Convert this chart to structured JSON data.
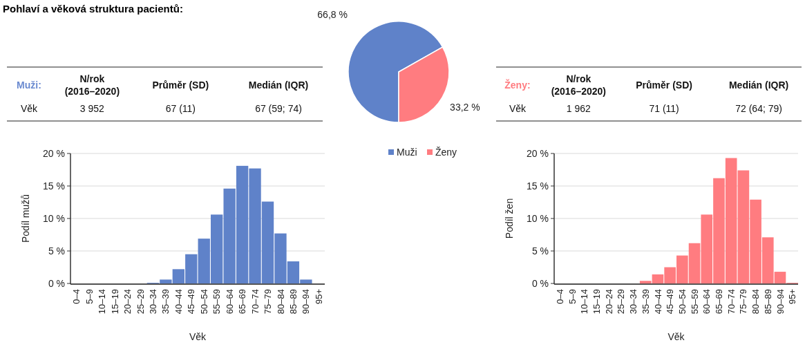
{
  "chart_data": [
    {
      "type": "other",
      "title": "Pohlaví a věková struktura pacientů:"
    },
    {
      "type": "other",
      "title": "Muži:",
      "color": "#6a8ad0",
      "annotations": [
        "N/rok (2016–2020)",
        "Průměr (SD)",
        "Medián (IQR)",
        "Věk",
        "3 952",
        "67 (11)",
        "67 (59; 74)"
      ]
    },
    {
      "type": "pie",
      "categories": [
        "Muži",
        "Ženy"
      ],
      "values": [
        66.8,
        33.2
      ],
      "colors": [
        "#5f82c9",
        "#ff7c80"
      ],
      "value_labels": [
        "66,8 %",
        "33,2 %"
      ],
      "legend": "bottom"
    },
    {
      "type": "other",
      "title": "Ženy:",
      "color": "#ff7c80",
      "annotations": [
        "N/rok (2016–2020)",
        "Průměr (SD)",
        "Medián (IQR)",
        "Věk",
        "1 962",
        "71 (11)",
        "72 (64; 79)"
      ]
    },
    {
      "type": "bar",
      "xlabel": "Věk",
      "ylabel": "Podíl mužů",
      "color": "#5f82c9",
      "grid": "y",
      "ylim": [
        0,
        20
      ],
      "yticks": [
        {
          "value": 0,
          "label": "0 %"
        },
        {
          "value": 5,
          "label": "5 %"
        },
        {
          "value": 10,
          "label": "10 %"
        },
        {
          "value": 15,
          "label": "15 %"
        },
        {
          "value": 20,
          "label": "20 %"
        }
      ],
      "categories": [
        "0–4",
        "5–9",
        "10–14",
        "15–19",
        "20–24",
        "25–29",
        "30–34",
        "35–39",
        "40–44",
        "45–49",
        "50–54",
        "55–59",
        "60–64",
        "65–69",
        "70–74",
        "75–79",
        "80–84",
        "85–89",
        "90–94",
        "95+"
      ],
      "values": [
        0,
        0,
        0,
        0,
        0,
        0,
        0.1,
        0.6,
        2.2,
        4.5,
        6.9,
        10.6,
        14.6,
        18.1,
        17.7,
        12.6,
        7.7,
        3.4,
        0.6,
        0
      ]
    },
    {
      "type": "bar",
      "xlabel": "Věk",
      "ylabel": "Podíl žen",
      "color": "#ff7c80",
      "grid": "y",
      "ylim": [
        0,
        20
      ],
      "yticks": [
        {
          "value": 0,
          "label": "0 %"
        },
        {
          "value": 5,
          "label": "5 %"
        },
        {
          "value": 10,
          "label": "10 %"
        },
        {
          "value": 15,
          "label": "15 %"
        },
        {
          "value": 20,
          "label": "20 %"
        }
      ],
      "categories": [
        "0–4",
        "5–9",
        "10–14",
        "15–19",
        "20–24",
        "25–29",
        "30–34",
        "35–39",
        "40–44",
        "45–49",
        "50–54",
        "55–59",
        "60–64",
        "65–69",
        "70–74",
        "75–79",
        "80–84",
        "85–89",
        "90–94",
        "95+"
      ],
      "values": [
        0,
        0,
        0,
        0,
        0,
        0,
        0,
        0.4,
        1.4,
        2.5,
        4.3,
        6.2,
        10.6,
        16.2,
        19.3,
        17.4,
        12.9,
        7.1,
        1.8,
        0.1
      ]
    }
  ]
}
